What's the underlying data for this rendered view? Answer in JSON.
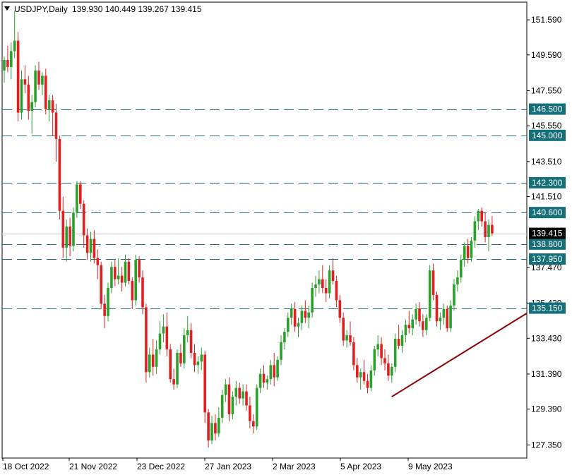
{
  "window": {
    "symbol": "USDJPY,Daily",
    "ohlc": "139.930 140.449 139.267 139.415"
  },
  "colors": {
    "bull": "#2ca02c",
    "bear": "#e02020",
    "level_line": "#1f6f7f",
    "level_tag": "#13707a",
    "price_tag": "#000000",
    "trendline": "#8b0000"
  },
  "chart_data": {
    "type": "candlestick",
    "title": "USDJPY,Daily",
    "ylim": [
      126.6,
      152.6
    ],
    "y_ticks": [
      "151.590",
      "149.590",
      "147.550",
      "145.550",
      "143.510",
      "141.510",
      "137.470",
      "135.430",
      "133.430",
      "131.390",
      "129.390",
      "127.350"
    ],
    "x_ticks": [
      "18 Oct 2022",
      "21 Nov 2022",
      "23 Dec 2022",
      "27 Jan 2023",
      "2 Mar 2023",
      "5 Apr 2023",
      "9 May 2023"
    ],
    "horizontal_levels": [
      {
        "label": "146.500",
        "value": 146.5
      },
      {
        "label": "145.000",
        "value": 145.0
      },
      {
        "label": "142.300",
        "value": 142.3
      },
      {
        "label": "140.600",
        "value": 140.6
      },
      {
        "label": "138.800",
        "value": 138.8
      },
      {
        "label": "137.950",
        "value": 137.95
      },
      {
        "label": "135.150",
        "value": 135.15
      }
    ],
    "current_price": {
      "label": "139.415",
      "value": 139.415
    },
    "trendline": {
      "from": {
        "bar": 112,
        "price": 130.1
      },
      "to": {
        "bar": 185,
        "price": 139.0
      }
    },
    "candles": [
      [
        148.7,
        149.5,
        148.0,
        149.3
      ],
      [
        149.3,
        150.1,
        148.6,
        148.9
      ],
      [
        148.9,
        150.3,
        148.2,
        149.8
      ],
      [
        149.8,
        152.1,
        149.4,
        150.4
      ],
      [
        150.4,
        150.9,
        145.8,
        146.3
      ],
      [
        146.3,
        148.7,
        145.9,
        148.2
      ],
      [
        148.2,
        149.0,
        147.4,
        147.9
      ],
      [
        147.9,
        148.4,
        145.9,
        146.4
      ],
      [
        146.4,
        147.3,
        145.1,
        146.9
      ],
      [
        146.9,
        149.0,
        146.6,
        148.7
      ],
      [
        148.7,
        149.2,
        147.6,
        147.9
      ],
      [
        147.9,
        148.6,
        147.3,
        148.4
      ],
      [
        148.4,
        148.8,
        146.2,
        146.5
      ],
      [
        146.5,
        147.3,
        145.8,
        147.0
      ],
      [
        147.0,
        147.3,
        145.0,
        146.3
      ],
      [
        146.3,
        146.8,
        143.5,
        144.8
      ],
      [
        144.8,
        145.0,
        140.2,
        140.7
      ],
      [
        140.7,
        141.5,
        138.0,
        138.6
      ],
      [
        138.6,
        140.2,
        137.8,
        139.8
      ],
      [
        139.8,
        140.3,
        138.1,
        138.7
      ],
      [
        138.7,
        140.9,
        138.4,
        140.6
      ],
      [
        140.6,
        142.4,
        140.3,
        142.2
      ],
      [
        142.2,
        142.4,
        140.8,
        141.1
      ],
      [
        141.1,
        141.3,
        138.6,
        139.3
      ],
      [
        139.3,
        139.7,
        137.9,
        138.3
      ],
      [
        138.3,
        139.5,
        137.8,
        139.1
      ],
      [
        139.1,
        139.6,
        137.7,
        138.0
      ],
      [
        138.0,
        138.5,
        136.8,
        137.6
      ],
      [
        137.6,
        137.8,
        135.1,
        135.4
      ],
      [
        135.4,
        135.9,
        134.0,
        134.7
      ],
      [
        134.7,
        136.6,
        134.4,
        136.3
      ],
      [
        136.3,
        137.8,
        136.0,
        137.5
      ],
      [
        137.5,
        137.9,
        136.4,
        136.8
      ],
      [
        136.8,
        138.0,
        136.5,
        137.0
      ],
      [
        137.0,
        137.5,
        136.1,
        136.6
      ],
      [
        136.6,
        138.2,
        136.4,
        137.8
      ],
      [
        137.8,
        138.0,
        136.5,
        136.7
      ],
      [
        136.7,
        136.9,
        135.1,
        135.6
      ],
      [
        135.6,
        138.2,
        135.3,
        137.9
      ],
      [
        137.9,
        138.1,
        136.6,
        136.9
      ],
      [
        136.9,
        137.3,
        134.8,
        135.2
      ],
      [
        135.2,
        135.4,
        130.9,
        131.5
      ],
      [
        131.5,
        132.9,
        131.2,
        132.5
      ],
      [
        132.5,
        133.4,
        131.3,
        131.8
      ],
      [
        131.8,
        133.3,
        131.4,
        132.8
      ],
      [
        132.8,
        134.4,
        132.5,
        133.7
      ],
      [
        133.7,
        134.8,
        133.2,
        134.1
      ],
      [
        134.1,
        134.9,
        132.4,
        132.8
      ],
      [
        132.8,
        133.1,
        130.9,
        131.1
      ],
      [
        131.1,
        131.7,
        130.5,
        130.8
      ],
      [
        130.8,
        132.8,
        130.6,
        132.6
      ],
      [
        132.6,
        133.1,
        131.8,
        132.0
      ],
      [
        132.0,
        134.0,
        131.7,
        133.6
      ],
      [
        133.6,
        134.7,
        133.2,
        133.9
      ],
      [
        133.9,
        134.3,
        132.3,
        132.6
      ],
      [
        132.6,
        133.1,
        131.5,
        131.9
      ],
      [
        131.9,
        132.4,
        131.4,
        132.1
      ],
      [
        132.1,
        132.9,
        131.6,
        132.5
      ],
      [
        132.5,
        132.7,
        128.6,
        129.2
      ],
      [
        129.2,
        129.4,
        127.2,
        127.6
      ],
      [
        127.6,
        129.0,
        127.4,
        128.6
      ],
      [
        128.6,
        129.1,
        127.6,
        128.0
      ],
      [
        128.0,
        129.5,
        127.8,
        128.9
      ],
      [
        128.9,
        130.5,
        128.6,
        130.2
      ],
      [
        130.2,
        131.1,
        129.8,
        130.8
      ],
      [
        130.8,
        131.2,
        128.7,
        129.1
      ],
      [
        129.1,
        130.4,
        128.8,
        130.1
      ],
      [
        130.1,
        131.0,
        129.6,
        130.6
      ],
      [
        130.6,
        130.9,
        129.7,
        130.0
      ],
      [
        130.0,
        130.8,
        129.6,
        130.4
      ],
      [
        130.4,
        130.8,
        129.3,
        129.6
      ],
      [
        129.6,
        130.1,
        128.3,
        128.7
      ],
      [
        128.7,
        129.1,
        128.0,
        128.4
      ],
      [
        128.4,
        130.8,
        128.2,
        130.6
      ],
      [
        130.6,
        131.7,
        130.3,
        131.4
      ],
      [
        131.4,
        131.9,
        130.6,
        130.9
      ],
      [
        130.9,
        131.3,
        130.5,
        131.1
      ],
      [
        131.1,
        132.2,
        130.8,
        131.9
      ],
      [
        131.9,
        132.6,
        130.7,
        131.2
      ],
      [
        131.2,
        132.4,
        131.0,
        132.2
      ],
      [
        132.2,
        133.6,
        131.9,
        133.2
      ],
      [
        133.2,
        134.0,
        132.8,
        133.8
      ],
      [
        133.8,
        134.9,
        133.5,
        134.6
      ],
      [
        134.6,
        135.4,
        134.2,
        135.1
      ],
      [
        135.1,
        135.5,
        133.8,
        134.1
      ],
      [
        134.1,
        134.6,
        133.5,
        134.3
      ],
      [
        134.3,
        135.3,
        133.9,
        135.0
      ],
      [
        135.0,
        135.6,
        134.3,
        134.6
      ],
      [
        134.6,
        135.3,
        134.0,
        134.9
      ],
      [
        134.9,
        136.6,
        134.6,
        136.3
      ],
      [
        136.3,
        137.0,
        135.8,
        136.5
      ],
      [
        136.5,
        137.3,
        136.0,
        136.8
      ],
      [
        136.8,
        137.6,
        136.0,
        136.3
      ],
      [
        136.3,
        136.8,
        135.5,
        136.0
      ],
      [
        136.0,
        137.6,
        135.7,
        137.3
      ],
      [
        137.3,
        138.0,
        136.5,
        136.7
      ],
      [
        136.7,
        137.0,
        135.2,
        135.6
      ],
      [
        135.6,
        135.9,
        134.3,
        134.6
      ],
      [
        134.6,
        134.9,
        133.0,
        133.3
      ],
      [
        133.3,
        133.9,
        132.9,
        133.6
      ],
      [
        133.6,
        134.4,
        133.0,
        133.2
      ],
      [
        133.2,
        133.5,
        131.6,
        131.9
      ],
      [
        131.9,
        132.3,
        130.9,
        131.2
      ],
      [
        131.2,
        131.7,
        130.5,
        131.5
      ],
      [
        131.5,
        132.2,
        130.8,
        131.0
      ],
      [
        131.0,
        131.4,
        130.3,
        130.6
      ],
      [
        130.6,
        131.9,
        130.4,
        131.6
      ],
      [
        131.6,
        133.0,
        131.3,
        132.8
      ],
      [
        132.8,
        133.6,
        132.4,
        133.1
      ],
      [
        133.1,
        133.5,
        131.9,
        132.3
      ],
      [
        132.3,
        132.8,
        131.6,
        132.0
      ],
      [
        132.0,
        132.5,
        131.0,
        131.3
      ],
      [
        131.3,
        132.0,
        130.9,
        131.8
      ],
      [
        131.8,
        133.7,
        131.5,
        133.4
      ],
      [
        133.4,
        134.2,
        132.8,
        133.0
      ],
      [
        133.0,
        133.9,
        132.6,
        133.6
      ],
      [
        133.6,
        134.5,
        133.2,
        134.2
      ],
      [
        134.2,
        135.0,
        133.7,
        134.0
      ],
      [
        134.0,
        134.8,
        133.6,
        134.5
      ],
      [
        134.5,
        135.4,
        134.2,
        135.1
      ],
      [
        135.1,
        135.5,
        134.1,
        134.4
      ],
      [
        134.4,
        134.8,
        133.5,
        133.9
      ],
      [
        133.9,
        134.8,
        133.6,
        134.6
      ],
      [
        134.6,
        137.6,
        134.4,
        137.3
      ],
      [
        137.3,
        137.7,
        135.6,
        135.9
      ],
      [
        135.9,
        136.1,
        134.1,
        134.4
      ],
      [
        134.4,
        134.9,
        133.9,
        134.6
      ],
      [
        134.6,
        135.4,
        134.2,
        135.1
      ],
      [
        135.1,
        135.3,
        133.8,
        134.0
      ],
      [
        134.0,
        135.6,
        133.8,
        135.3
      ],
      [
        135.3,
        136.8,
        135.0,
        136.5
      ],
      [
        136.5,
        137.3,
        136.1,
        136.9
      ],
      [
        136.9,
        138.2,
        136.6,
        137.9
      ],
      [
        137.9,
        138.9,
        137.5,
        138.7
      ],
      [
        138.7,
        139.1,
        137.7,
        138.0
      ],
      [
        138.0,
        139.2,
        137.8,
        139.0
      ],
      [
        139.0,
        140.4,
        138.6,
        140.1
      ],
      [
        140.1,
        140.8,
        139.6,
        140.7
      ],
      [
        140.7,
        140.9,
        139.8,
        140.1
      ],
      [
        140.1,
        140.6,
        138.9,
        139.2
      ],
      [
        139.2,
        140.2,
        138.4,
        139.9
      ],
      [
        139.9,
        140.4,
        139.267,
        139.415
      ]
    ]
  }
}
